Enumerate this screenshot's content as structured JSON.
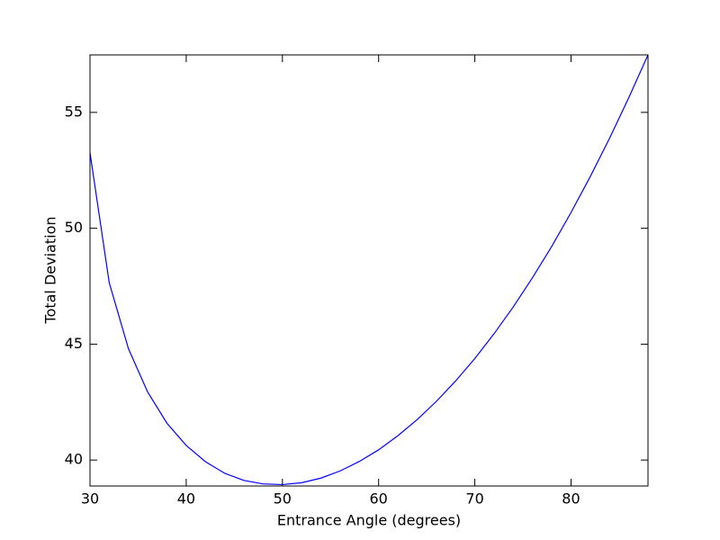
{
  "chart_data": {
    "type": "line",
    "x_label": "Entrance Angle (degrees)",
    "y_label": "Total Deviation",
    "x": [
      30,
      32,
      34,
      36,
      38,
      40,
      42,
      44,
      46,
      48,
      50,
      52,
      54,
      56,
      58,
      60,
      62,
      64,
      66,
      68,
      70,
      72,
      74,
      76,
      78,
      80,
      82,
      84,
      86,
      88
    ],
    "series": [
      {
        "color": "#0000ff",
        "values": [
          53.26,
          47.65,
          44.8,
          42.93,
          41.59,
          40.63,
          39.93,
          39.43,
          39.12,
          38.97,
          38.94,
          39.02,
          39.22,
          39.53,
          39.94,
          40.44,
          41.05,
          41.74,
          42.53,
          43.41,
          44.38,
          45.45,
          46.61,
          47.87,
          49.22,
          50.68,
          52.23,
          53.88,
          55.63,
          57.48
        ]
      }
    ],
    "xlim": [
      30,
      88
    ],
    "ylim": [
      38.88,
      57.48
    ],
    "xticks": [
      30,
      40,
      50,
      60,
      70,
      80
    ],
    "yticks": [
      40,
      45,
      50,
      55
    ]
  }
}
